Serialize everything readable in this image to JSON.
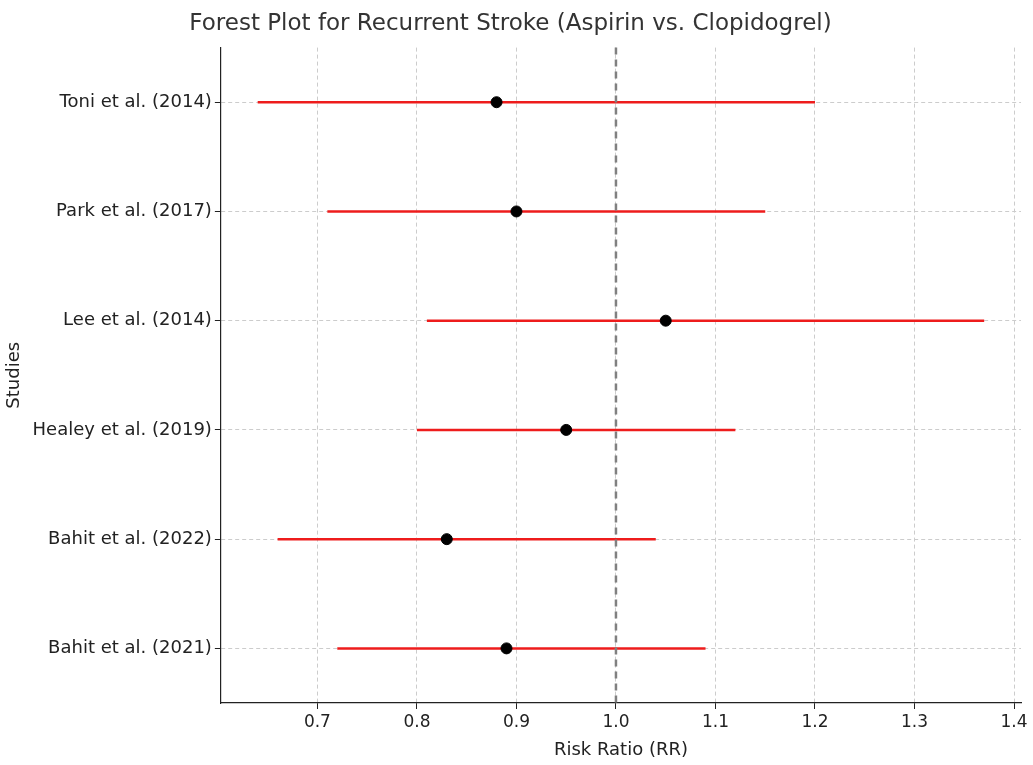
{
  "chart_data": {
    "type": "scatter",
    "orientation": "horizontal",
    "title": "Forest Plot for Recurrent Stroke (Aspirin vs. Clopidogrel)",
    "xlabel": "Risk Ratio (RR)",
    "ylabel": "Studies",
    "categories": [
      "Toni et al. (2014)",
      "Park et al. (2017)",
      "Lee et al. (2014)",
      "Healey et al. (2019)",
      "Bahit et al. (2022)",
      "Bahit et al. (2021)"
    ],
    "values": [
      0.88,
      0.9,
      1.05,
      0.95,
      0.83,
      0.89
    ],
    "errors": [
      [
        0.64,
        1.2
      ],
      [
        0.71,
        1.15
      ],
      [
        0.81,
        1.37
      ],
      [
        0.8,
        1.12
      ],
      [
        0.66,
        1.04
      ],
      [
        0.72,
        1.09
      ]
    ],
    "color": "#000000",
    "marker": "circle",
    "xlim": [
      0.603,
      1.407
    ],
    "xticks": [
      0.7,
      0.8,
      0.9,
      {
        "value": 1,
        "label": "1.0"
      },
      1.1,
      1.2,
      1.3,
      1.4
    ],
    "ref_lines": [
      {
        "axis": "x",
        "value": 1.0,
        "color": "#808080",
        "line_style": "dashed"
      }
    ],
    "grid": true,
    "legend": false
  }
}
